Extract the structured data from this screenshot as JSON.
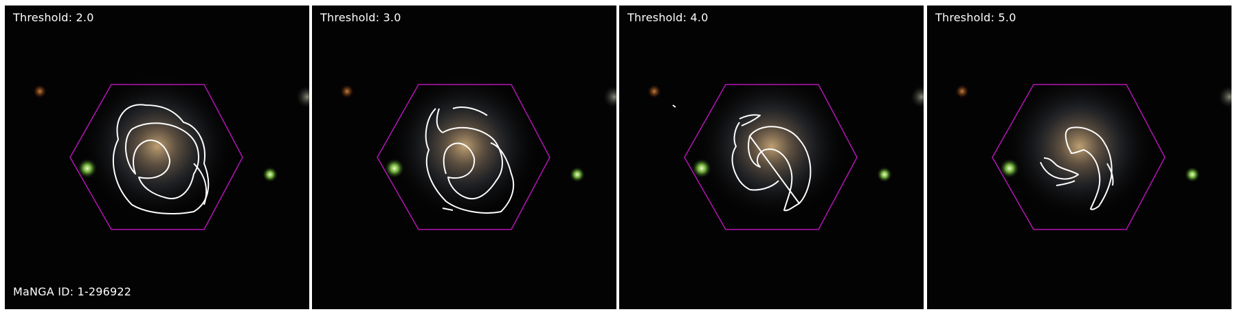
{
  "panels": [
    {
      "threshold_label": "Threshold: 2.0",
      "contour_level": 2.0,
      "id_label": "MaNGA ID: 1-296922"
    },
    {
      "threshold_label": "Threshold: 3.0",
      "contour_level": 3.0
    },
    {
      "threshold_label": "Threshold: 4.0",
      "contour_level": 4.0
    },
    {
      "threshold_label": "Threshold: 5.0",
      "contour_level": 5.0
    }
  ],
  "colors": {
    "hexagon": "#b414b4",
    "contour": "#ffffff",
    "background": "#030303",
    "label": "#ffffff"
  }
}
